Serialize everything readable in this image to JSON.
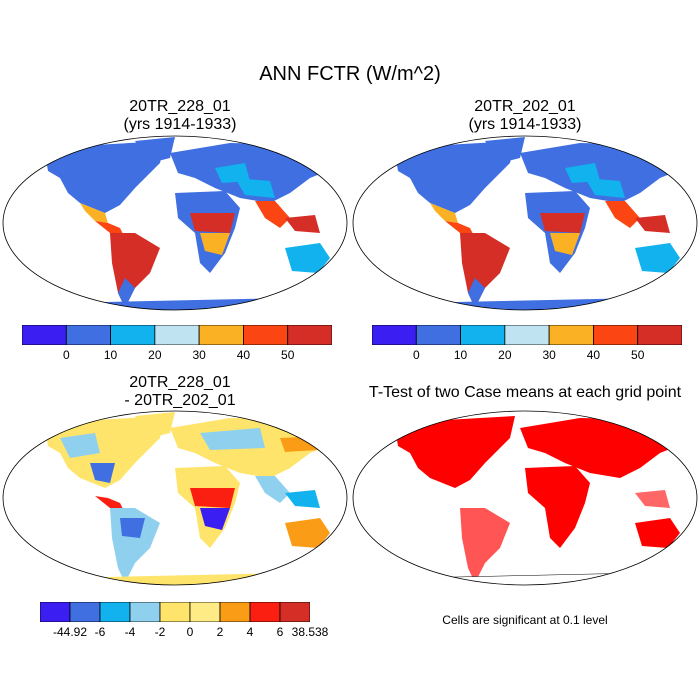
{
  "figure": {
    "title": "ANN FCTR (W/m^2)"
  },
  "panels": [
    {
      "id": "p1",
      "title_line1": "20TR_228_01",
      "title_line2": "(yrs 1914-1933)"
    },
    {
      "id": "p2",
      "title_line1": "20TR_202_01",
      "title_line2": "(yrs 1914-1933)"
    },
    {
      "id": "p3",
      "title_line1": "20TR_228_01",
      "title_line2": "- 20TR_202_01"
    },
    {
      "id": "p4",
      "title_line1": "T-Test of two Case means at each grid point",
      "title_line2": ""
    }
  ],
  "colorbars": {
    "absolute": {
      "labels": [
        "0",
        "10",
        "20",
        "30",
        "40",
        "50"
      ],
      "colors": [
        "#3a1ef2",
        "#3f6fe0",
        "#12b2ef",
        "#bfe3f1",
        "#fbb124",
        "#fb4513",
        "#d42e27"
      ]
    },
    "difference": {
      "labels": [
        "-44.92",
        "-6",
        "-4",
        "-2",
        "0",
        "2",
        "4",
        "6",
        "38.538"
      ],
      "colors": [
        "#3a1ef2",
        "#3f6fe0",
        "#12b2ef",
        "#8fd0ee",
        "#ffe46b",
        "#ffeb86",
        "#fb9c17",
        "#fa1f10",
        "#d42e27"
      ]
    }
  },
  "significance_note": "Cells are significant at 0.1 level",
  "significance_color": "#ff0000"
}
